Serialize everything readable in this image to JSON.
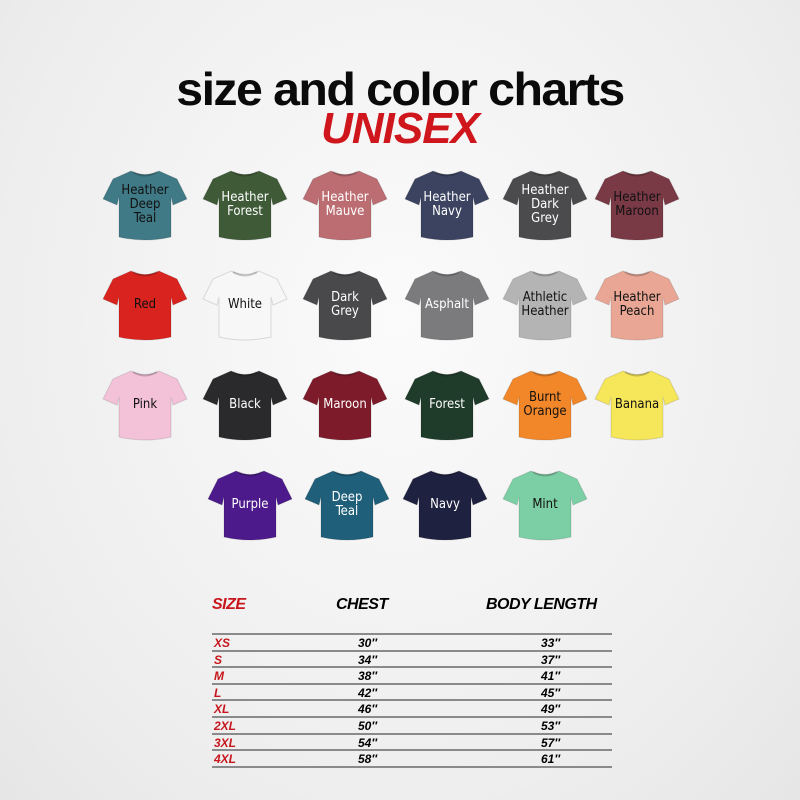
{
  "title": "size and color charts",
  "subtitle": "UNISEX",
  "colors": [
    {
      "name": "Heather\nDeep\nTeal",
      "hex": "#3f7a86",
      "text": "#111"
    },
    {
      "name": "Heather\nForest",
      "hex": "#3e5a36",
      "text": "#fff"
    },
    {
      "name": "Heather\nMauve",
      "hex": "#bb6d72",
      "text": "#fff"
    },
    {
      "name": "Heather\nNavy",
      "hex": "#3b4360",
      "text": "#fff"
    },
    {
      "name": "Heather\nDark\nGrey",
      "hex": "#4b4b4d",
      "text": "#fff"
    },
    {
      "name": "Heather\nMaroon",
      "hex": "#7a3a45",
      "text": "#111"
    },
    {
      "name": "Red",
      "hex": "#d9231f",
      "text": "#111"
    },
    {
      "name": "White",
      "hex": "#f7f7f7",
      "text": "#111"
    },
    {
      "name": "Dark\nGrey",
      "hex": "#49494b",
      "text": "#fff"
    },
    {
      "name": "Asphalt",
      "hex": "#7b7b7d",
      "text": "#fff"
    },
    {
      "name": "Athletic\nHeather",
      "hex": "#b4b4b4",
      "text": "#111"
    },
    {
      "name": "Heather\nPeach",
      "hex": "#e9a694",
      "text": "#111"
    },
    {
      "name": "Pink",
      "hex": "#f4c2d8",
      "text": "#111"
    },
    {
      "name": "Black",
      "hex": "#2a2a2c",
      "text": "#fff"
    },
    {
      "name": "Maroon",
      "hex": "#7e1b2b",
      "text": "#fff"
    },
    {
      "name": "Forest",
      "hex": "#1f3b2a",
      "text": "#fff"
    },
    {
      "name": "Burnt\nOrange",
      "hex": "#f2872a",
      "text": "#111"
    },
    {
      "name": "Banana",
      "hex": "#f6e65a",
      "text": "#111"
    },
    {
      "name": "Purple",
      "hex": "#4c1a8a",
      "text": "#fff"
    },
    {
      "name": "Deep\nTeal",
      "hex": "#1f5f7a",
      "text": "#fff"
    },
    {
      "name": "Navy",
      "hex": "#1f2140",
      "text": "#fff"
    },
    {
      "name": "Mint",
      "hex": "#7ccfa4",
      "text": "#111"
    }
  ],
  "table": {
    "headers": {
      "size": "SIZE",
      "chest": "CHEST",
      "body_length": "BODY LENGTH"
    },
    "rows": [
      {
        "size": "XS",
        "chest": "30″",
        "body_length": "33″"
      },
      {
        "size": "S",
        "chest": "34″",
        "body_length": "37″"
      },
      {
        "size": "M",
        "chest": "38″",
        "body_length": "41″"
      },
      {
        "size": "L",
        "chest": "42″",
        "body_length": "45″"
      },
      {
        "size": "XL",
        "chest": "46″",
        "body_length": "49″"
      },
      {
        "size": "2XL",
        "chest": "50″",
        "body_length": "53″"
      },
      {
        "size": "3XL",
        "chest": "54″",
        "body_length": "57″"
      },
      {
        "size": "4XL",
        "chest": "58″",
        "body_length": "61″"
      }
    ]
  }
}
